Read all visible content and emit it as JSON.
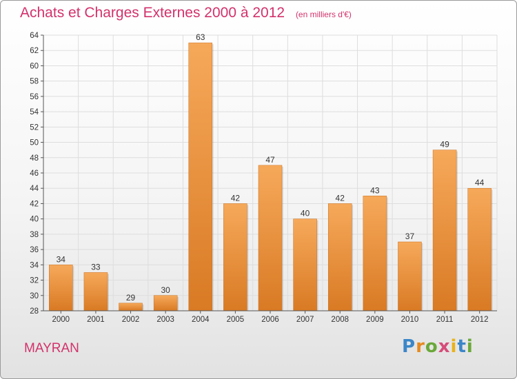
{
  "header": {
    "title": "Achats et Charges Externes 2000 à 2012",
    "unit": "(en milliers d'€)"
  },
  "footer": {
    "town": "MAYRAN",
    "logo_letters": [
      "P",
      "r",
      "o",
      "x",
      "i",
      "t",
      "i"
    ]
  },
  "colors": {
    "title": "#d3316b",
    "bar_light": "#f6a95a",
    "bar_dark": "#d97a24",
    "grid": "#dddddd"
  },
  "chart_data": {
    "type": "bar",
    "title": "Achats et Charges Externes 2000 à 2012",
    "subtitle": "(en milliers d'€)",
    "xlabel": "",
    "ylabel": "",
    "categories": [
      "2000",
      "2001",
      "2002",
      "2003",
      "2004",
      "2005",
      "2006",
      "2007",
      "2008",
      "2009",
      "2010",
      "2011",
      "2012"
    ],
    "values": [
      34,
      33,
      29,
      30,
      63,
      42,
      47,
      40,
      42,
      43,
      37,
      49,
      44
    ],
    "ylim": [
      28,
      64
    ],
    "yticks": [
      28,
      30,
      32,
      34,
      36,
      38,
      40,
      42,
      44,
      46,
      48,
      50,
      52,
      54,
      56,
      58,
      60,
      62,
      64
    ],
    "grid": true,
    "legend": "none"
  }
}
